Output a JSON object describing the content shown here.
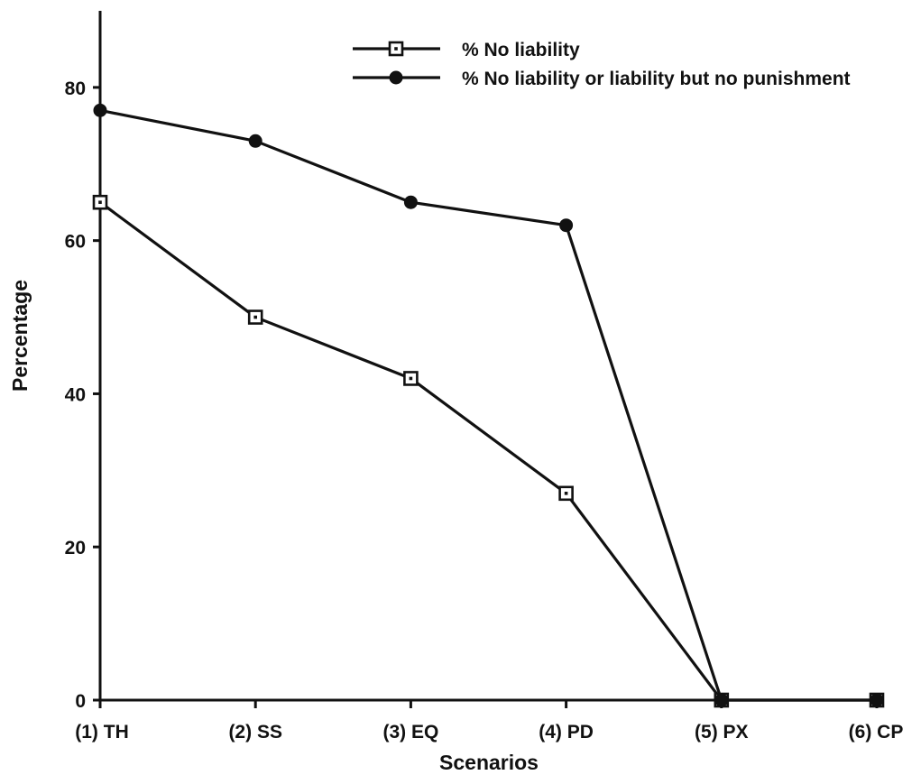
{
  "chart_data": {
    "type": "line",
    "title": "",
    "xlabel": "Scenarios",
    "ylabel": "Percentage",
    "categories": [
      "(1) TH",
      "(2) SS",
      "(3) EQ",
      "(4) PD",
      "(5) PX",
      "(6) CP"
    ],
    "yticks": [
      0,
      20,
      40,
      60,
      80
    ],
    "ylim": [
      0,
      90
    ],
    "grid": false,
    "legend_position": "top-right",
    "series": [
      {
        "name": "% No liability",
        "marker": "open-square",
        "values": [
          65,
          50,
          42,
          27,
          0,
          0
        ]
      },
      {
        "name": "% No liability or liability but no punishment",
        "marker": "filled-circle",
        "values": [
          77,
          73,
          65,
          62,
          0,
          0
        ]
      }
    ],
    "colors": {
      "line": "#111111",
      "background": "#ffffff"
    }
  }
}
